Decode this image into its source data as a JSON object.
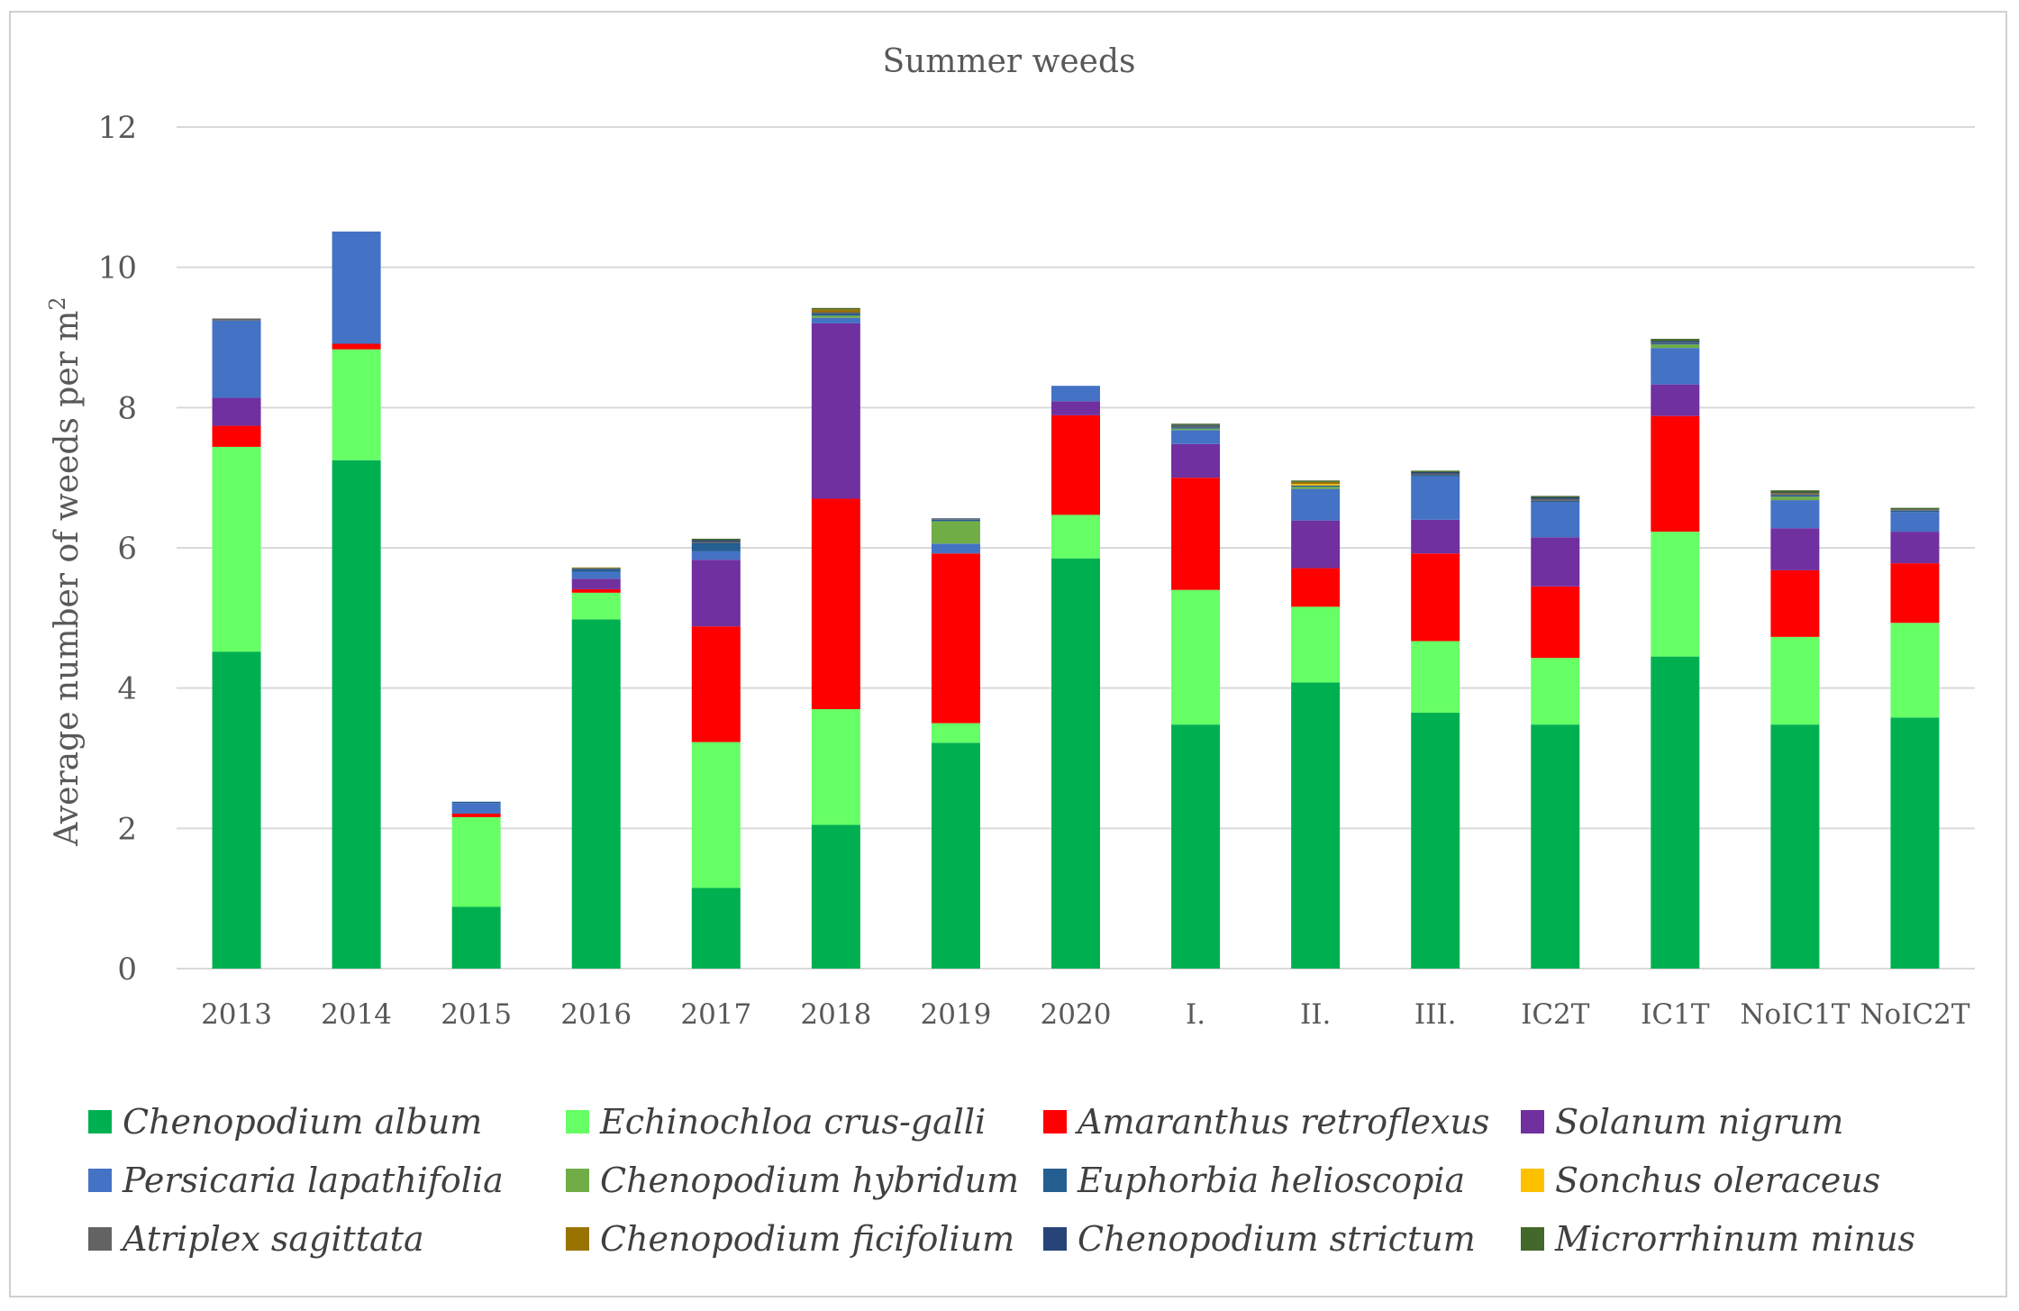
{
  "chart_data": {
    "type": "bar",
    "stacked": true,
    "title": "Summer weeds",
    "xlabel": "",
    "ylabel": "Average number of weeds per m",
    "ylabel_superscript": "2",
    "ylim": [
      0,
      12
    ],
    "yticks": [
      "0",
      "2",
      "4",
      "6",
      "8",
      "10",
      "12"
    ],
    "ytick_values": [
      0,
      2,
      4,
      6,
      8,
      10,
      12
    ],
    "grid": true,
    "legend_position": "bottom",
    "categories": [
      "2013",
      "2014",
      "2015",
      "2016",
      "2017",
      "2018",
      "2019",
      "2020",
      "I.",
      "II.",
      "III.",
      "IC2T",
      "IC1T",
      "NoIC1T",
      "NoIC2T"
    ],
    "series": [
      {
        "name": "Chenopodium album",
        "color": "#00b050",
        "values": [
          4.52,
          7.25,
          0.88,
          4.98,
          1.15,
          2.05,
          3.22,
          5.85,
          3.48,
          4.08,
          3.65,
          3.48,
          4.45,
          3.48,
          3.58
        ]
      },
      {
        "name": "Echinochloa crus-galli",
        "color": "#66ff66",
        "values": [
          2.92,
          1.58,
          1.28,
          0.38,
          2.08,
          1.65,
          0.28,
          0.62,
          1.92,
          1.08,
          1.02,
          0.95,
          1.78,
          1.25,
          1.35
        ]
      },
      {
        "name": "Amaranthus retroflexus",
        "color": "#ff0000",
        "values": [
          0.3,
          0.08,
          0.05,
          0.05,
          1.65,
          3.0,
          2.42,
          1.42,
          1.6,
          0.55,
          1.25,
          1.02,
          1.65,
          0.95,
          0.85
        ]
      },
      {
        "name": "Solanum nigrum",
        "color": "#7030a0",
        "values": [
          0.4,
          0.0,
          0.0,
          0.15,
          0.95,
          2.5,
          0.0,
          0.2,
          0.48,
          0.68,
          0.48,
          0.7,
          0.45,
          0.6,
          0.45
        ]
      },
      {
        "name": "Persicaria lapathifolia",
        "color": "#4472c4",
        "values": [
          1.1,
          1.6,
          0.15,
          0.1,
          0.12,
          0.08,
          0.14,
          0.22,
          0.2,
          0.45,
          0.62,
          0.5,
          0.52,
          0.4,
          0.28
        ]
      },
      {
        "name": "Chenopodium hybridum",
        "color": "#70ad47",
        "values": [
          0,
          0,
          0,
          0,
          0,
          0.03,
          0.32,
          0,
          0.02,
          0.03,
          0,
          0,
          0.05,
          0.05,
          0
        ]
      },
      {
        "name": "Euphorbia helioscopia",
        "color": "#255e91",
        "values": [
          0,
          0,
          0.02,
          0.04,
          0.12,
          0.03,
          0.02,
          0,
          0.02,
          0.02,
          0.02,
          0.02,
          0.02,
          0.02,
          0.02
        ]
      },
      {
        "name": "Sonchus oleraceus",
        "color": "#ffc000",
        "values": [
          0,
          0,
          0,
          0,
          0,
          0,
          0,
          0,
          0,
          0.02,
          0,
          0,
          0,
          0,
          0
        ]
      },
      {
        "name": "Atriplex sagittata",
        "color": "#636363",
        "values": [
          0.03,
          0,
          0,
          0.01,
          0.02,
          0.02,
          0.01,
          0,
          0.02,
          0,
          0.02,
          0.03,
          0.01,
          0.02,
          0.02
        ]
      },
      {
        "name": "Chenopodium ficifolium",
        "color": "#997300",
        "values": [
          0,
          0,
          0,
          0.01,
          0,
          0.04,
          0,
          0,
          0,
          0.03,
          0,
          0,
          0,
          0.01,
          0
        ]
      },
      {
        "name": "Chenopodium strictum",
        "color": "#264478",
        "values": [
          0,
          0,
          0,
          0,
          0.02,
          0,
          0.01,
          0,
          0.01,
          0,
          0.02,
          0.02,
          0.02,
          0.01,
          0
        ]
      },
      {
        "name": "Microrrhinum minus",
        "color": "#43682b",
        "values": [
          0,
          0,
          0,
          0,
          0.02,
          0.02,
          0,
          0,
          0.02,
          0.02,
          0.02,
          0.02,
          0.03,
          0.03,
          0.02
        ]
      }
    ]
  }
}
